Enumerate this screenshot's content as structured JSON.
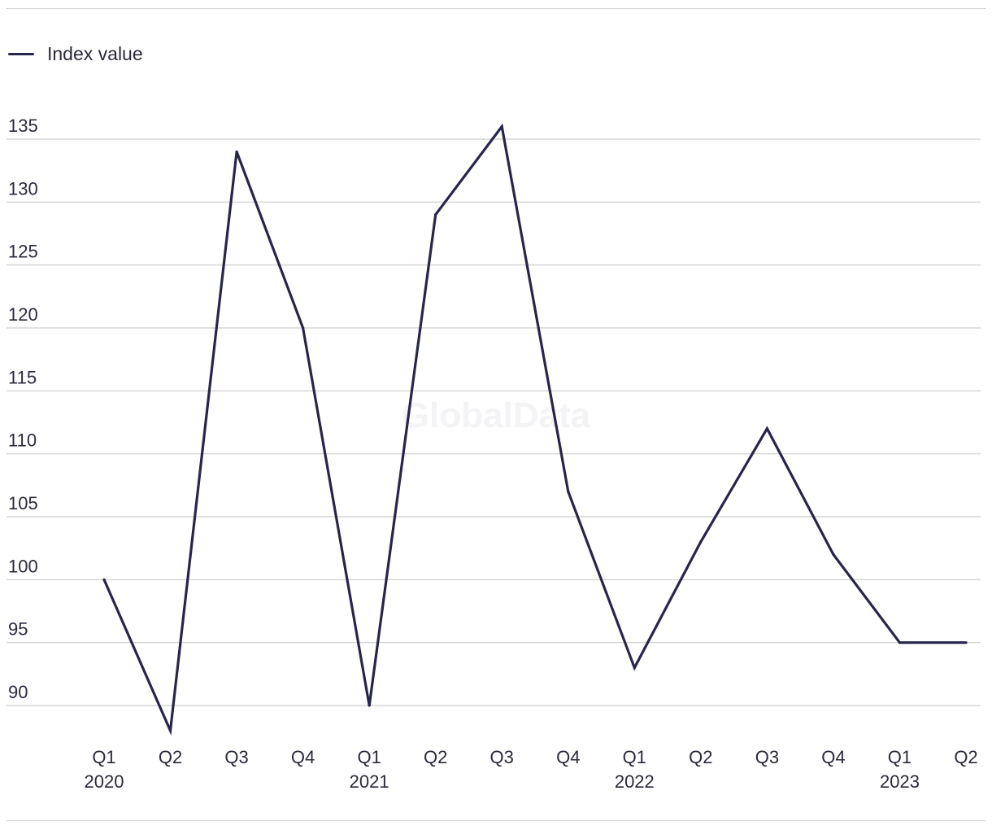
{
  "watermark": "GlobalData",
  "chart_data": {
    "type": "line",
    "categories": [
      "Q1 2020",
      "Q2 2020",
      "Q3 2020",
      "Q4 2020",
      "Q1 2021",
      "Q2 2021",
      "Q3 2021",
      "Q4 2021",
      "Q1 2022",
      "Q2 2022",
      "Q3 2022",
      "Q4 2022",
      "Q1 2023",
      "Q2 2023"
    ],
    "x_tick_labels": [
      {
        "quarter": "Q1",
        "year": "2020"
      },
      {
        "quarter": "Q2",
        "year": ""
      },
      {
        "quarter": "Q3",
        "year": ""
      },
      {
        "quarter": "Q4",
        "year": ""
      },
      {
        "quarter": "Q1",
        "year": "2021"
      },
      {
        "quarter": "Q2",
        "year": ""
      },
      {
        "quarter": "Q3",
        "year": ""
      },
      {
        "quarter": "Q4",
        "year": ""
      },
      {
        "quarter": "Q1",
        "year": "2022"
      },
      {
        "quarter": "Q2",
        "year": ""
      },
      {
        "quarter": "Q3",
        "year": ""
      },
      {
        "quarter": "Q4",
        "year": ""
      },
      {
        "quarter": "Q1",
        "year": "2023"
      },
      {
        "quarter": "Q2",
        "year": ""
      }
    ],
    "series": [
      {
        "name": "Index value",
        "color": "#27264a",
        "values": [
          100,
          88,
          134,
          120,
          90,
          129,
          136,
          107,
          93,
          103,
          112,
          102,
          95,
          95
        ]
      }
    ],
    "y_ticks": [
      90,
      95,
      100,
      105,
      110,
      115,
      120,
      125,
      130,
      135
    ],
    "ylim": [
      90,
      135
    ],
    "legend": "top-left",
    "grid": true,
    "title": "",
    "xlabel": "",
    "ylabel": ""
  }
}
